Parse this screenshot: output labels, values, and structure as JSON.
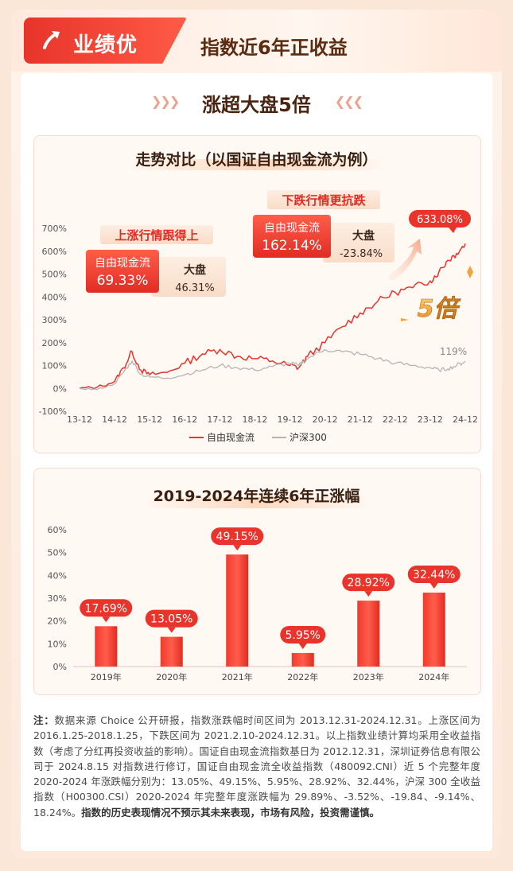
{
  "header": {
    "badge": "业绩优",
    "title": "指数近6年正收益",
    "subtitle": "涨超大盘5倍"
  },
  "colors": {
    "primary_red": "#e8342b",
    "gray_line": "#b5b5b5",
    "accent_gold": "#f2a33a"
  },
  "icons": [
    "up-arrow-icon",
    "chevron-right-icon",
    "chevron-left-icon",
    "upward-trend-arrow-icon"
  ],
  "chart_data": [
    {
      "type": "line",
      "title": "走势对比（以国证自由现金流为例）",
      "x_ticks": [
        "13-12",
        "14-12",
        "15-12",
        "16-12",
        "17-12",
        "18-12",
        "19-12",
        "20-12",
        "21-12",
        "22-12",
        "23-12",
        "24-12"
      ],
      "y_ticks": [
        "700%",
        "600%",
        "500%",
        "400%",
        "300%",
        "200%",
        "100%",
        "0%",
        "-100%"
      ],
      "ylim": [
        -100,
        700
      ],
      "grid": false,
      "legend_position": "bottom",
      "series": [
        {
          "name": "自由现金流",
          "color": "#e8342b",
          "x": [
            "13-12",
            "14-06",
            "14-12",
            "15-03",
            "15-06",
            "15-09",
            "15-12",
            "16-06",
            "16-12",
            "17-06",
            "17-12",
            "18-06",
            "18-12",
            "19-06",
            "19-12",
            "20-03",
            "20-06",
            "20-12",
            "21-06",
            "21-12",
            "22-06",
            "22-12",
            "23-06",
            "23-12",
            "24-03",
            "24-06",
            "24-09",
            "24-12"
          ],
          "values": [
            0,
            5,
            30,
            90,
            160,
            80,
            60,
            70,
            110,
            150,
            170,
            140,
            130,
            120,
            100,
            90,
            140,
            200,
            270,
            330,
            380,
            420,
            440,
            470,
            510,
            560,
            590,
            633.08
          ]
        },
        {
          "name": "沪深300",
          "color": "#b5b5b5",
          "x": [
            "13-12",
            "14-06",
            "14-12",
            "15-03",
            "15-06",
            "15-09",
            "15-12",
            "16-06",
            "16-12",
            "17-06",
            "17-12",
            "18-06",
            "18-12",
            "19-06",
            "19-12",
            "20-03",
            "20-06",
            "20-12",
            "21-06",
            "21-12",
            "22-06",
            "22-12",
            "23-06",
            "23-12",
            "24-03",
            "24-06",
            "24-09",
            "24-12"
          ],
          "values": [
            0,
            -5,
            20,
            70,
            120,
            60,
            50,
            45,
            60,
            80,
            100,
            90,
            80,
            95,
            110,
            100,
            130,
            170,
            160,
            150,
            130,
            110,
            100,
            90,
            80,
            85,
            100,
            119
          ]
        }
      ],
      "annotations": {
        "up_market": {
          "label": "上涨行情跟得上",
          "fcf_name": "自由现金流",
          "fcf_value": "69.33%",
          "index_name": "大盘",
          "index_value": "46.31%"
        },
        "down_market": {
          "label": "下跌行情更抗跌",
          "fcf_name": "自由现金流",
          "fcf_value": "162.14%",
          "index_name": "大盘",
          "index_value": "-23.84%"
        },
        "end_fcf": "633.08%",
        "end_index": "119%",
        "multiple": "5倍"
      }
    },
    {
      "type": "bar",
      "title": "2019-2024年连续6年正涨幅",
      "categories": [
        "2019年",
        "2020年",
        "2021年",
        "2022年",
        "2023年",
        "2024年"
      ],
      "values": [
        17.69,
        13.05,
        49.15,
        5.95,
        28.92,
        32.44
      ],
      "value_labels": [
        "17.69%",
        "13.05%",
        "49.15%",
        "5.95%",
        "28.92%",
        "32.44%"
      ],
      "y_ticks": [
        "60%",
        "50%",
        "40%",
        "30%",
        "20%",
        "10%",
        "0%"
      ],
      "ylim": [
        0,
        60
      ],
      "grid": false
    }
  ],
  "note": {
    "label": "注：",
    "text": "数据来源 Choice 公开研报，指数涨跌幅时间区间为 2013.12.31-2024.12.31。上涨区间为 2016.1.25-2018.1.25，下跌区间为 2021.2.10-2024.12.31。以上指数业绩计算均采用全收益指数（考虑了分红再投资收益的影响）。国证自由现金流指数基日为 2012.12.31，深圳证券信息有限公司于 2024.8.15 对指数进行修订，国证自由现金流全收益指数（480092.CNI）近 5 个完整年度 2020-2024 年涨跌幅分别为：13.05%、49.15%、5.95%、28.92%、32.44%，沪深 300 全收益指数（H00300.CSI）2020-2024 年完整年度涨跌幅为 29.89%、-3.52%、-19.84、-9.14%、18.24%。",
    "bold_text": "指数的历史表现情况不预示其未来表现，市场有风险，投资需谨慎。"
  }
}
